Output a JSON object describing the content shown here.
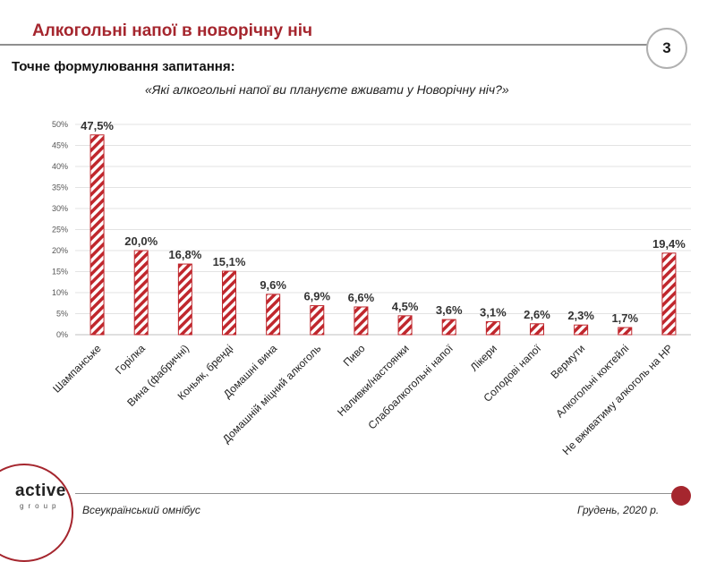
{
  "header": {
    "title": "Алкогольні напої в новорічну ніч",
    "page_number": "3"
  },
  "question": {
    "label": "Точне формулювання запитання:",
    "text": "«Які алкогольні напої ви плануєте вживати у Новорічну ніч?»"
  },
  "footer": {
    "logo_main": "active",
    "logo_sub": "group",
    "source": "Всеукраїнський омнібус",
    "date": "Грудень, 2020 р."
  },
  "colors": {
    "accent": "#a5262e",
    "bar_stripe": "#c0272d"
  },
  "chart_data": {
    "type": "bar",
    "categories": [
      "Шампанське",
      "Горілка",
      "Вина (фабричні)",
      "Коньяк, бренді",
      "Домашні вина",
      "Домашній міцний алкоголь",
      "Пиво",
      "Наливки/настоянки",
      "Слабоалкогольні напої",
      "Лікери",
      "Солодові напої",
      "Вермути",
      "Алкогольні коктейлі",
      "Не вживатиму алкоголь на НР"
    ],
    "values": [
      47.5,
      20.0,
      16.8,
      15.1,
      9.6,
      6.9,
      6.6,
      4.5,
      3.6,
      3.1,
      2.6,
      2.3,
      1.7,
      19.4
    ],
    "value_labels": [
      "47,5%",
      "20,0%",
      "16,8%",
      "15,1%",
      "9,6%",
      "6,9%",
      "6,6%",
      "4,5%",
      "3,6%",
      "3,1%",
      "2,6%",
      "2,3%",
      "1,7%",
      "19,4%"
    ],
    "yticks": [
      0,
      5,
      10,
      15,
      20,
      25,
      30,
      35,
      40,
      45,
      50
    ],
    "ytick_labels": [
      "0%",
      "5%",
      "10%",
      "15%",
      "20%",
      "25%",
      "30%",
      "35%",
      "40%",
      "45%",
      "50%"
    ],
    "ylim": [
      0,
      50
    ],
    "grid": true,
    "legend": "none"
  }
}
